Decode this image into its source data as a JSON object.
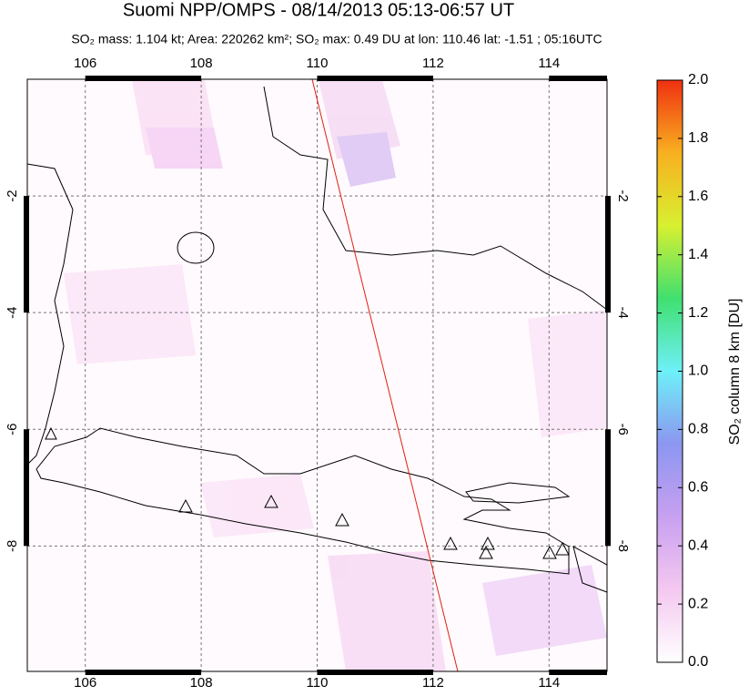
{
  "title": "Suomi NPP/OMPS - 08/14/2013 05:13-06:57 UT",
  "subtitle": "SO₂ mass: 1.104 kt; Area: 220262 km²; SO₂ max: 0.49 DU at lon: 110.46 lat: -1.51 ; 05:16UTC",
  "map": {
    "type": "map",
    "xlim": [
      105,
      115
    ],
    "ylim": [
      -10.15,
      0
    ],
    "xticks": [
      106,
      108,
      110,
      112,
      114
    ],
    "yticks": [
      -2,
      -4,
      -6,
      -8
    ],
    "grid": true
  },
  "colorbar": {
    "label": "SO₂ column 8 km [DU]",
    "lim": [
      0,
      2
    ],
    "ticks": [
      {
        "value": 0,
        "label": "0.0"
      },
      0.2,
      0.4,
      0.6,
      0.8,
      {
        "value": 1,
        "label": "1.0"
      },
      1.2,
      1.4,
      1.6,
      1.8,
      {
        "value": 2,
        "label": "2.0"
      }
    ],
    "colors": [
      "#ffffff",
      "#f4c8f0",
      "#c8a0f0",
      "#8c96f0",
      "#6ef0f8",
      "#40e070",
      "#d8f030",
      "#f8b020",
      "#f03010"
    ]
  }
}
